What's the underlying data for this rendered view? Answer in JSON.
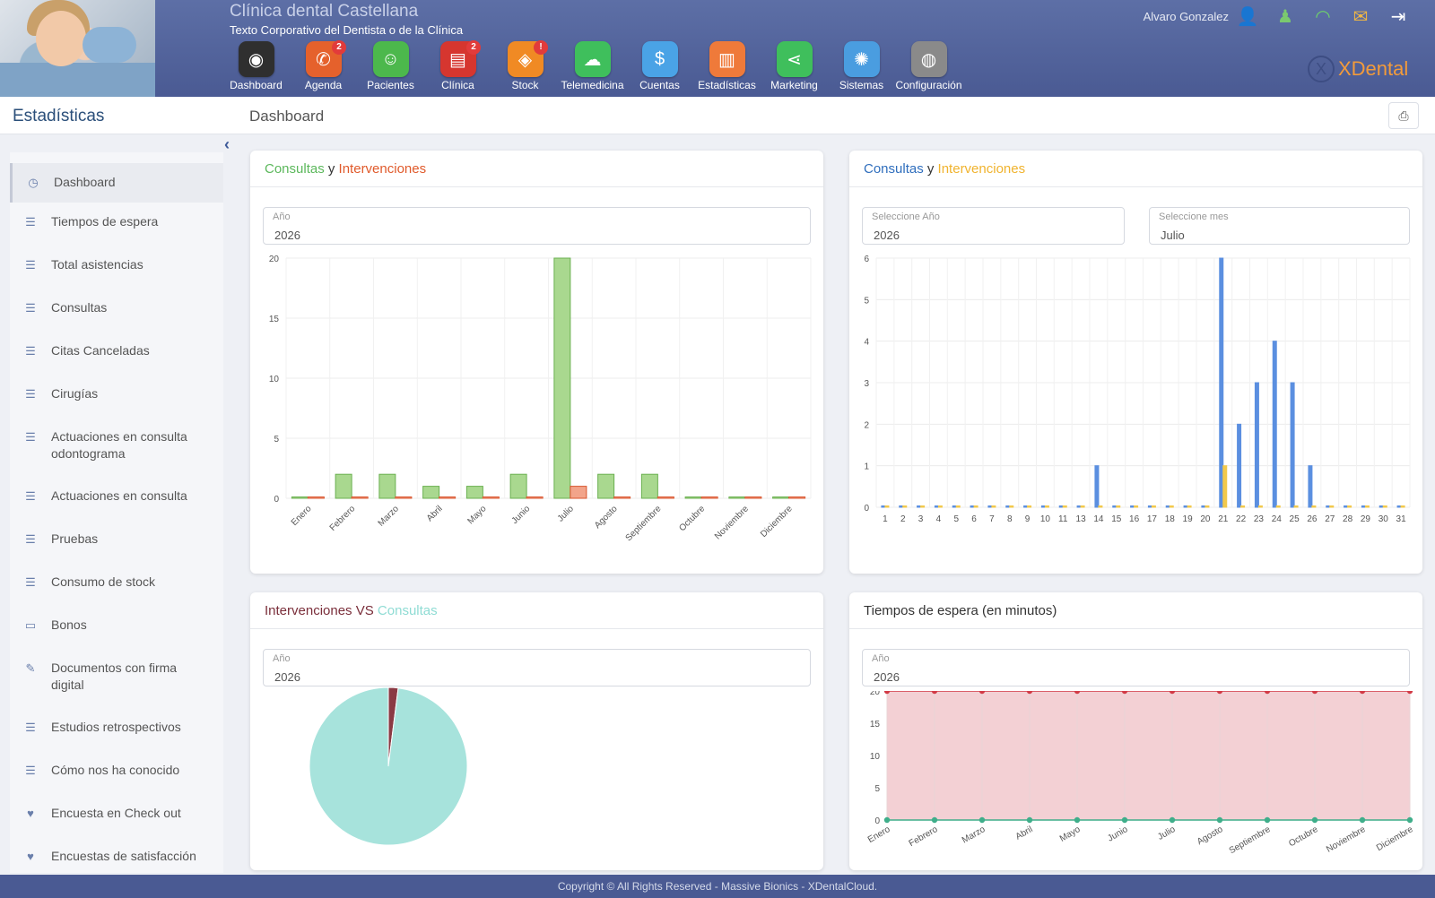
{
  "header": {
    "clinic_name": "Clínica dental Castellana",
    "clinic_subtitle": "Texto Corporativo del Dentista o de la Clínica",
    "user_name": "Alvaro Gonzalez",
    "logo_text": "XDental",
    "logo_mark": "X",
    "nav": [
      {
        "label": "Dashboard",
        "icon": "speedometer-icon",
        "glyph": "◉",
        "color": "#2f2f2f",
        "badge": ""
      },
      {
        "label": "Agenda",
        "icon": "phone-icon",
        "glyph": "✆",
        "color": "#e5612c",
        "badge": "2"
      },
      {
        "label": "Pacientes",
        "icon": "patient-icon",
        "glyph": "☺",
        "color": "#4cb84c",
        "badge": ""
      },
      {
        "label": "Clínica",
        "icon": "clipboard-icon",
        "glyph": "▤",
        "color": "#d6362f",
        "badge": "2"
      },
      {
        "label": "Stock",
        "icon": "box-icon",
        "glyph": "◈",
        "color": "#f08a24",
        "badge": "!"
      },
      {
        "label": "Telemedicina",
        "icon": "chat-bubble-icon",
        "glyph": "☁",
        "color": "#3fbf5c",
        "badge": ""
      },
      {
        "label": "Cuentas",
        "icon": "money-hand-icon",
        "glyph": "$",
        "color": "#4aa3e6",
        "badge": ""
      },
      {
        "label": "Estadísticas",
        "icon": "bar-chart-icon",
        "glyph": "▥",
        "color": "#ef7a3a",
        "badge": ""
      },
      {
        "label": "Marketing",
        "icon": "share-icon",
        "glyph": "⋖",
        "color": "#3fbf5c",
        "badge": ""
      },
      {
        "label": "Sistemas",
        "icon": "gear-wheel-icon",
        "glyph": "✺",
        "color": "#4a9de0",
        "badge": ""
      },
      {
        "label": "Configuración",
        "icon": "user-settings-icon",
        "glyph": "◍",
        "color": "#8a8a8a",
        "badge": ""
      }
    ]
  },
  "subbar": {
    "section": "Estadísticas",
    "breadcrumb": "Dashboard"
  },
  "sidebar": {
    "items": [
      {
        "label": "Dashboard",
        "icon": "clock-icon",
        "glyph": "◷"
      },
      {
        "label": "Tiempos de espera",
        "icon": "list-icon",
        "glyph": "☰"
      },
      {
        "label": "Total asistencias",
        "icon": "list-icon",
        "glyph": "☰"
      },
      {
        "label": "Consultas",
        "icon": "list-icon",
        "glyph": "☰"
      },
      {
        "label": "Citas Canceladas",
        "icon": "list-icon",
        "glyph": "☰"
      },
      {
        "label": "Cirugías",
        "icon": "list-icon",
        "glyph": "☰"
      },
      {
        "label": "Actuaciones en consulta odontograma",
        "icon": "list-icon",
        "glyph": "☰"
      },
      {
        "label": "Actuaciones en consulta",
        "icon": "list-icon",
        "glyph": "☰"
      },
      {
        "label": "Pruebas",
        "icon": "list-icon",
        "glyph": "☰"
      },
      {
        "label": "Consumo de stock",
        "icon": "list-icon",
        "glyph": "☰"
      },
      {
        "label": "Bonos",
        "icon": "card-icon",
        "glyph": "▭"
      },
      {
        "label": "Documentos con firma digital",
        "icon": "pencil-icon",
        "glyph": "✎"
      },
      {
        "label": "Estudios retrospectivos",
        "icon": "list-icon",
        "glyph": "☰"
      },
      {
        "label": "Cómo nos ha conocido",
        "icon": "list-icon",
        "glyph": "☰"
      },
      {
        "label": "Encuesta en Check out",
        "icon": "heart-icon",
        "glyph": "♥"
      },
      {
        "label": "Encuestas de satisfacción",
        "icon": "heart-icon",
        "glyph": "♥"
      }
    ]
  },
  "cards": {
    "c1": {
      "title_a": "Consultas",
      "title_y": "y",
      "title_b": "Intervenciones",
      "field_label": "Año",
      "field_value": "2026"
    },
    "c2": {
      "title_a": "Consultas",
      "title_y": "y",
      "title_b": "Intervenciones",
      "year_label": "Seleccione Año",
      "year_value": "2026",
      "month_label": "Seleccione mes",
      "month_value": "Julio"
    },
    "c3": {
      "title_a": "Intervenciones VS",
      "title_b": "Consultas",
      "field_label": "Año",
      "field_value": "2026"
    },
    "c4": {
      "title": "Tiempos de espera (en minutos)",
      "field_label": "Año",
      "field_value": "2026"
    }
  },
  "chart_data": [
    {
      "type": "bar",
      "categories": [
        "Enero",
        "Febrero",
        "Marzo",
        "Abril",
        "Mayo",
        "Junio",
        "Julio",
        "Agosto",
        "Septiembre",
        "Octubre",
        "Noviembre",
        "Diciembre"
      ],
      "series": [
        {
          "values": [
            0,
            2,
            2,
            1,
            1,
            2,
            20,
            2,
            2,
            0,
            0,
            0
          ],
          "color": "#a9d88f",
          "stroke": "#6bb050"
        },
        {
          "values": [
            0,
            0,
            0,
            0,
            0,
            0,
            1,
            0,
            0,
            0,
            0,
            0
          ],
          "color": "#f2a48a",
          "stroke": "#d9552e"
        }
      ],
      "ylim": [
        0,
        20
      ],
      "yticks": [
        0,
        5,
        10,
        15,
        20
      ],
      "grid": true
    },
    {
      "type": "bar",
      "categories": [
        "1",
        "2",
        "3",
        "4",
        "5",
        "6",
        "7",
        "8",
        "9",
        "10",
        "11",
        "13",
        "14",
        "15",
        "16",
        "17",
        "18",
        "19",
        "20",
        "21",
        "22",
        "23",
        "24",
        "25",
        "26",
        "27",
        "28",
        "29",
        "30",
        "31"
      ],
      "series": [
        {
          "values": [
            0,
            0,
            0,
            0,
            0,
            0,
            0,
            0,
            0,
            0,
            0,
            0,
            1,
            0,
            0,
            0,
            0,
            0,
            0,
            6,
            2,
            3,
            4,
            3,
            1,
            0,
            0,
            0,
            0,
            0
          ],
          "color": "#5b8fe0"
        },
        {
          "values": [
            0,
            0,
            0,
            0,
            0,
            0,
            0,
            0,
            0,
            0,
            0,
            0,
            0,
            0,
            0,
            0,
            0,
            0,
            0,
            1,
            0,
            0,
            0,
            0,
            0,
            0,
            0,
            0,
            0,
            0
          ],
          "color": "#f2c94c"
        }
      ],
      "ylim": [
        0,
        6
      ],
      "yticks": [
        0,
        1,
        2,
        3,
        4,
        5,
        6
      ],
      "grid": true
    },
    {
      "type": "pie",
      "slices": [
        {
          "value": 2,
          "color": "#8a3a44"
        },
        {
          "value": 98,
          "color": "#a7e3dc"
        }
      ]
    },
    {
      "type": "area",
      "categories": [
        "Enero",
        "Febrero",
        "Marzo",
        "Abril",
        "Mayo",
        "Junio",
        "Julio",
        "Agosto",
        "Septiembre",
        "Octubre",
        "Noviembre",
        "Diciembre"
      ],
      "series": [
        {
          "values": [
            20,
            20,
            20,
            20,
            20,
            20,
            20,
            20,
            20,
            20,
            20,
            20
          ],
          "color": "#d23a46",
          "fill": "#f3d0d4"
        },
        {
          "values": [
            0,
            0,
            0,
            0,
            0,
            0,
            0,
            0,
            0,
            0,
            0,
            0
          ],
          "color": "#3fae8a"
        }
      ],
      "ylim": [
        0,
        20
      ],
      "yticks": [
        0,
        5,
        10,
        15,
        20
      ],
      "grid": true
    }
  ],
  "footer": {
    "text": "Copyright © All Rights Reserved - Massive Bionics - XDentalCloud."
  }
}
